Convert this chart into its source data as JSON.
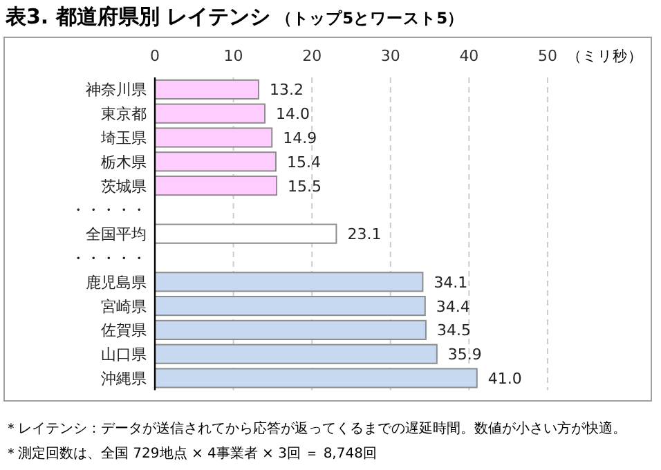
{
  "chart_data": {
    "type": "bar",
    "orientation": "horizontal",
    "title": "表3. 都道府県別 レイテンシ",
    "subtitle": "（トップ5とワースト5）",
    "xlabel": "（ミリ秒）",
    "categories": [
      "神奈川県",
      "東京都",
      "埼玉県",
      "栃木県",
      "茨城県",
      "・・・・・",
      "全国平均",
      "・・・・・",
      "鹿児島県",
      "宮崎県",
      "佐賀県",
      "山口県",
      "沖縄県"
    ],
    "values": [
      13.2,
      14.0,
      14.9,
      15.4,
      15.5,
      null,
      23.1,
      null,
      34.1,
      34.4,
      34.5,
      35.9,
      41.0
    ],
    "colors": [
      "#ffccff",
      "#ffccff",
      "#ffccff",
      "#ffccff",
      "#ffccff",
      null,
      "#ffffff",
      null,
      "#c6d9f1",
      "#c6d9f1",
      "#c6d9f1",
      "#c6d9f1",
      "#c6d9f1"
    ],
    "value_labels": [
      "13.2",
      "14.0",
      "14.9",
      "15.4",
      "15.5",
      null,
      "23.1",
      null,
      "34.1",
      "34.4",
      "34.5",
      "35.9",
      "41.0"
    ],
    "xlim": [
      0,
      50
    ],
    "xticks": [
      0,
      10,
      20,
      30,
      40,
      50
    ],
    "grid": "x",
    "annotations": [
      "＊レイテンシ：データが送信されてから応答が返ってくるまでの遅延時間。数値が小さい方が快適。",
      "＊測定回数は、全国 729地点 × 4事業者 × 3回 ＝ 8,748回"
    ]
  }
}
